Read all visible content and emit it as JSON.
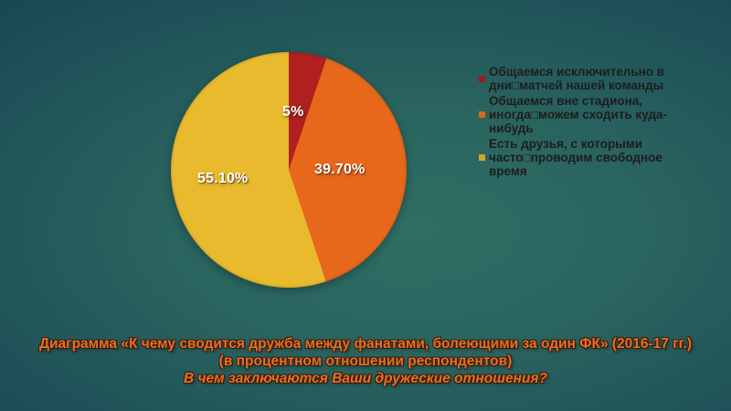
{
  "slide": {
    "background_center_color": "#2f6e64",
    "background_edge_color": "#103547",
    "caption_color": "#e2702a",
    "caption_line1": "Диаграмма «К чему сводится дружба между фанатами, болеющими за один ФК» (2016-17 гг.)",
    "caption_line2": "(в процентном отношении респондентов)",
    "caption_line3": "В чем заключаются Ваши дружеские отношения?"
  },
  "chart_data": {
    "type": "pie",
    "title": "",
    "categories": [
      "Общаемся исключительно в дни□матчей нашей команды",
      "Общаемся вне стадиона, иногда□можем сходить куда-нибудь",
      "Есть друзья, с которыми часто□проводим свободное время"
    ],
    "values": [
      5.2,
      39.7,
      55.1
    ],
    "labels": [
      "5%",
      "39.70%",
      "55.10%"
    ],
    "colors": [
      "#b02020",
      "#e8681b",
      "#e9ba2d"
    ],
    "label_color": "#ffffff",
    "start_angle_deg": 0,
    "direction": "clockwise",
    "legend_position": "right",
    "legend": [
      {
        "text": "Общаемся исключительно в\nдни□матчей нашей команды",
        "color": "#9e1b1b"
      },
      {
        "text": "Общаемся вне стадиона,\nиногда□можем сходить куда-\nнибудь",
        "color": "#dd6817"
      },
      {
        "text": "Есть друзья, с которыми\nчасто□проводим свободное\nвремя",
        "color": "#d5a31f"
      }
    ]
  }
}
